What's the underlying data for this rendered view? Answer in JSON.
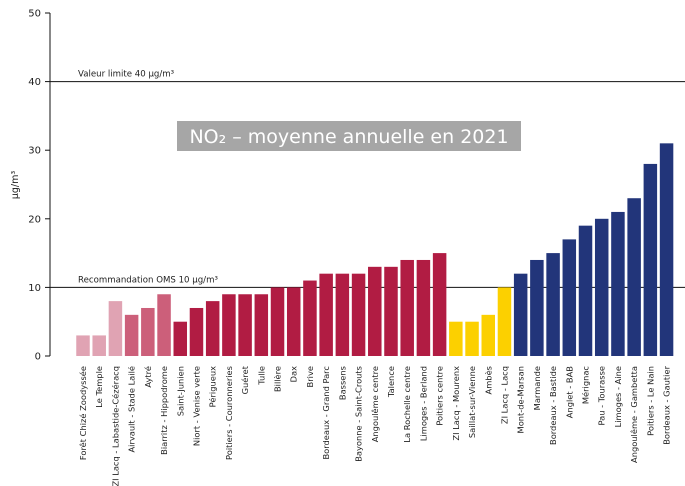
{
  "chart_data": {
    "type": "bar",
    "title": "NO₂ – moyenne annuelle en 2021",
    "ylabel": "µg/m³",
    "xlabel": "",
    "ylim": [
      0,
      50
    ],
    "yticks": [
      0,
      10,
      20,
      30,
      40,
      50
    ],
    "grid": false,
    "legend": "none",
    "categories": [
      "Forêt Chizé Zoodyssée",
      "Le Temple",
      "ZI Lacq - Labastide-Cézéracq",
      "Airvault - Stade Lailé",
      "Aytré",
      "Biarritz - Hippodrome",
      "Saint-Junien",
      "Niort - Venise verte",
      "Périgueux",
      "Poitiers - Couronneries",
      "Guéret",
      "Tulle",
      "Billère",
      "Dax",
      "Brive",
      "Bordeaux - Grand Parc",
      "Bassens",
      "Bayonne - Saint-Crouts",
      "Angoulême centre",
      "Talence",
      "La Rochelle centre",
      "Limoges - Berland",
      "Poitiers centre",
      "ZI Lacq - Mourenx",
      "Saillat-sur-Vienne",
      "Ambès",
      "ZI Lacq - Lacq",
      "Mont-de-Marsan",
      "Marmande",
      "Bordeaux - Bastide",
      "Anglet - BAB",
      "Mérignac",
      "Pau - Tourasse",
      "Limoges - Aine",
      "Angoulême - Gambetta",
      "Poitiers - Le Nain",
      "Bordeaux - Gautier"
    ],
    "values": [
      3,
      3,
      8,
      6,
      7,
      9,
      5,
      7,
      8,
      9,
      9,
      9,
      10,
      10,
      11,
      12,
      12,
      12,
      13,
      13,
      14,
      14,
      15,
      5,
      5,
      6,
      10,
      12,
      14,
      15,
      17,
      19,
      20,
      21,
      23,
      28,
      31
    ],
    "colors": [
      "#e0a3b3",
      "#e0a3b3",
      "#e0a3b3",
      "#cc5f7a",
      "#cc5f7a",
      "#cc5f7a",
      "#b11c43",
      "#b11c43",
      "#b11c43",
      "#b11c43",
      "#b11c43",
      "#b11c43",
      "#b11c43",
      "#b11c43",
      "#b11c43",
      "#b11c43",
      "#b11c43",
      "#b11c43",
      "#b11c43",
      "#b11c43",
      "#b11c43",
      "#b11c43",
      "#b11c43",
      "#fcd000",
      "#fcd000",
      "#fcd000",
      "#fcd000",
      "#22357a",
      "#22357a",
      "#22357a",
      "#22357a",
      "#22357a",
      "#22357a",
      "#22357a",
      "#22357a",
      "#22357a",
      "#22357a"
    ],
    "reference_lines": [
      {
        "value": 40,
        "label": "Valeur limite 40 µg/m³"
      },
      {
        "value": 10,
        "label": "Recommandation OMS 10 µg/m³"
      }
    ]
  }
}
